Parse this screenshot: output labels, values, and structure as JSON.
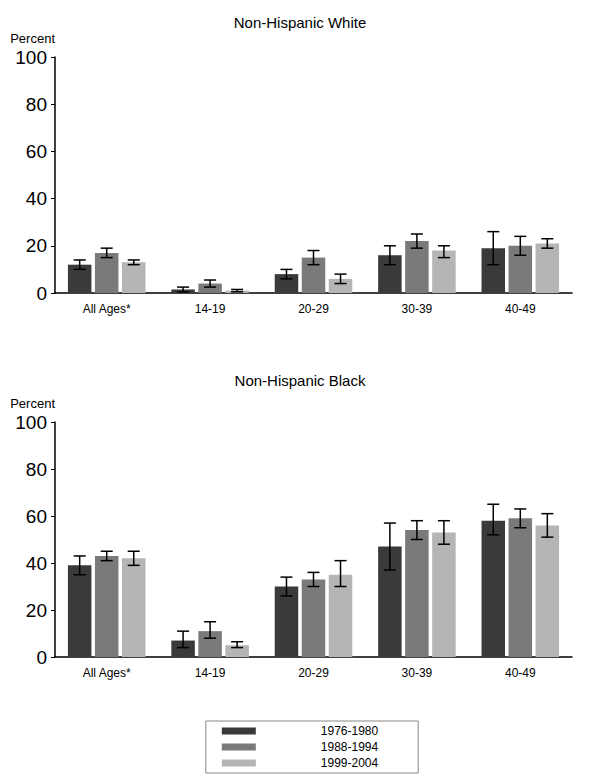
{
  "chart_data": [
    {
      "type": "bar",
      "title": "Non-Hispanic White",
      "y_label": "Percent",
      "categories": [
        "All Ages*",
        "14-19",
        "20-29",
        "30-39",
        "40-49"
      ],
      "ylim": [
        0,
        100
      ],
      "yticks": [
        0,
        20,
        40,
        60,
        80,
        100
      ],
      "grid": false,
      "series": [
        {
          "name": "1976-1980",
          "color": "#3a3a3a",
          "values": [
            12,
            1.5,
            8,
            16,
            19
          ],
          "errors": [
            [
              10,
              14
            ],
            [
              0.5,
              2.5
            ],
            [
              6,
              10
            ],
            [
              12,
              20
            ],
            [
              12,
              26
            ]
          ]
        },
        {
          "name": "1988-1994",
          "color": "#7a7a7a",
          "values": [
            17,
            4,
            15,
            22,
            20
          ],
          "errors": [
            [
              15,
              19
            ],
            [
              2.5,
              5.5
            ],
            [
              12,
              18
            ],
            [
              19,
              25
            ],
            [
              16,
              24
            ]
          ]
        },
        {
          "name": "1999-2004",
          "color": "#b5b5b5",
          "values": [
            13,
            1,
            6,
            18,
            21
          ],
          "errors": [
            [
              12,
              14
            ],
            [
              0.5,
              1.5
            ],
            [
              4,
              8
            ],
            [
              15,
              20
            ],
            [
              19,
              23
            ]
          ]
        }
      ]
    },
    {
      "type": "bar",
      "title": "Non-Hispanic Black",
      "y_label": "Percent",
      "categories": [
        "All Ages*",
        "14-19",
        "20-29",
        "30-39",
        "40-49"
      ],
      "ylim": [
        0,
        100
      ],
      "yticks": [
        0,
        20,
        40,
        60,
        80,
        100
      ],
      "grid": false,
      "legend": "bottom",
      "series": [
        {
          "name": "1976-1980",
          "color": "#3a3a3a",
          "values": [
            39,
            7,
            30,
            47,
            58
          ],
          "errors": [
            [
              35,
              43
            ],
            [
              4,
              11
            ],
            [
              26,
              34
            ],
            [
              37,
              57
            ],
            [
              52,
              65
            ]
          ]
        },
        {
          "name": "1988-1994",
          "color": "#7a7a7a",
          "values": [
            43,
            11,
            33,
            54,
            59
          ],
          "errors": [
            [
              41,
              45
            ],
            [
              8,
              15
            ],
            [
              30,
              36
            ],
            [
              50,
              58
            ],
            [
              55,
              63
            ]
          ]
        },
        {
          "name": "1999-2004",
          "color": "#b5b5b5",
          "values": [
            42,
            5,
            35,
            53,
            56
          ],
          "errors": [
            [
              39,
              45
            ],
            [
              4,
              6.5
            ],
            [
              30,
              41
            ],
            [
              48,
              58
            ],
            [
              51,
              61
            ]
          ]
        }
      ]
    }
  ]
}
